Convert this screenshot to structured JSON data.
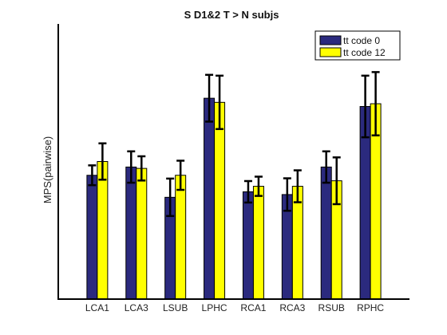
{
  "chart_data": {
    "type": "bar",
    "title": "S D1&2 T > N subjs",
    "xlabel": "",
    "ylabel": "MPS(pairwise)",
    "categories": [
      "LCA1",
      "LCA3",
      "LSUB",
      "LPHC",
      "RCA1",
      "RCA3",
      "RSUB",
      "RPHC"
    ],
    "ylim": [
      0,
      1
    ],
    "grid": false,
    "legend_position": "top-right",
    "series": [
      {
        "name": "tt code 0",
        "color": "#2b2a7e",
        "values": [
          0.45,
          0.48,
          0.37,
          0.73,
          0.39,
          0.38,
          0.48,
          0.7
        ],
        "errors": [
          0.036,
          0.057,
          0.068,
          0.085,
          0.039,
          0.059,
          0.057,
          0.112
        ]
      },
      {
        "name": "tt code 12",
        "color": "#ffff00",
        "values": [
          0.5,
          0.475,
          0.45,
          0.715,
          0.41,
          0.41,
          0.43,
          0.71
        ],
        "errors": [
          0.066,
          0.044,
          0.053,
          0.097,
          0.035,
          0.058,
          0.085,
          0.115
        ]
      }
    ]
  }
}
